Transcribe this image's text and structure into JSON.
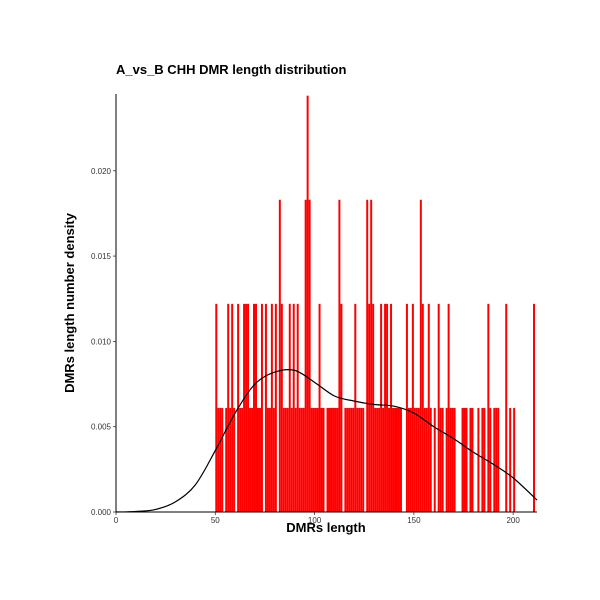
{
  "chart_data": {
    "type": "bar",
    "subtype": "histogram-with-density",
    "title": "A_vs_B  CHH  DMR  length  distribution",
    "xlabel": "DMRs  length",
    "ylabel": "DMRs  length  number  density",
    "xlim": [
      0,
      212
    ],
    "ylim": [
      0,
      0.0245
    ],
    "x_ticks": [
      0,
      50,
      100,
      150,
      200
    ],
    "x_tick_labels": [
      "0",
      "50",
      "100",
      "150",
      "200"
    ],
    "y_ticks": [
      0,
      0.005,
      0.01,
      0.015,
      0.02
    ],
    "y_tick_labels": [
      "0.000",
      "0.005",
      "0.010",
      "0.015",
      "0.020"
    ],
    "bar_color": "#ff0000",
    "line_color": "#000000",
    "grid": false,
    "bin_width": 1,
    "bars": [
      {
        "x": 50,
        "y": 0.0122
      },
      {
        "x": 51,
        "y": 0.0061
      },
      {
        "x": 52,
        "y": 0.0061
      },
      {
        "x": 53,
        "y": 0.0061
      },
      {
        "x": 55,
        "y": 0.0061
      },
      {
        "x": 56,
        "y": 0.0122
      },
      {
        "x": 57,
        "y": 0.0061
      },
      {
        "x": 58,
        "y": 0.0122
      },
      {
        "x": 59,
        "y": 0.0061
      },
      {
        "x": 61,
        "y": 0.0122
      },
      {
        "x": 62,
        "y": 0.0061
      },
      {
        "x": 63,
        "y": 0.0061
      },
      {
        "x": 64,
        "y": 0.0122
      },
      {
        "x": 65,
        "y": 0.0122
      },
      {
        "x": 66,
        "y": 0.0122
      },
      {
        "x": 67,
        "y": 0.0061
      },
      {
        "x": 68,
        "y": 0.0061
      },
      {
        "x": 69,
        "y": 0.0122
      },
      {
        "x": 70,
        "y": 0.0122
      },
      {
        "x": 71,
        "y": 0.0061
      },
      {
        "x": 72,
        "y": 0.0061
      },
      {
        "x": 73,
        "y": 0.0122
      },
      {
        "x": 75,
        "y": 0.0122
      },
      {
        "x": 76,
        "y": 0.0061
      },
      {
        "x": 77,
        "y": 0.0061
      },
      {
        "x": 78,
        "y": 0.0122
      },
      {
        "x": 79,
        "y": 0.0061
      },
      {
        "x": 80,
        "y": 0.0122
      },
      {
        "x": 82,
        "y": 0.0183
      },
      {
        "x": 83,
        "y": 0.0122
      },
      {
        "x": 84,
        "y": 0.0061
      },
      {
        "x": 85,
        "y": 0.0061
      },
      {
        "x": 86,
        "y": 0.0061
      },
      {
        "x": 87,
        "y": 0.0122
      },
      {
        "x": 88,
        "y": 0.0061
      },
      {
        "x": 89,
        "y": 0.0122
      },
      {
        "x": 90,
        "y": 0.0061
      },
      {
        "x": 91,
        "y": 0.0122
      },
      {
        "x": 92,
        "y": 0.0061
      },
      {
        "x": 93,
        "y": 0.0061
      },
      {
        "x": 94,
        "y": 0.0061
      },
      {
        "x": 95,
        "y": 0.0183
      },
      {
        "x": 96,
        "y": 0.0244
      },
      {
        "x": 97,
        "y": 0.0183
      },
      {
        "x": 98,
        "y": 0.0061
      },
      {
        "x": 99,
        "y": 0.0061
      },
      {
        "x": 100,
        "y": 0.0061
      },
      {
        "x": 101,
        "y": 0.0061
      },
      {
        "x": 102,
        "y": 0.0122
      },
      {
        "x": 103,
        "y": 0.0061
      },
      {
        "x": 104,
        "y": 0.0061
      },
      {
        "x": 106,
        "y": 0.0061
      },
      {
        "x": 107,
        "y": 0.0061
      },
      {
        "x": 108,
        "y": 0.0061
      },
      {
        "x": 109,
        "y": 0.0061
      },
      {
        "x": 110,
        "y": 0.0061
      },
      {
        "x": 111,
        "y": 0.0061
      },
      {
        "x": 112,
        "y": 0.0183
      },
      {
        "x": 113,
        "y": 0.0122
      },
      {
        "x": 115,
        "y": 0.0061
      },
      {
        "x": 116,
        "y": 0.0061
      },
      {
        "x": 117,
        "y": 0.0061
      },
      {
        "x": 118,
        "y": 0.0061
      },
      {
        "x": 119,
        "y": 0.0061
      },
      {
        "x": 120,
        "y": 0.0122
      },
      {
        "x": 121,
        "y": 0.0061
      },
      {
        "x": 122,
        "y": 0.0061
      },
      {
        "x": 123,
        "y": 0.0061
      },
      {
        "x": 124,
        "y": 0.0061
      },
      {
        "x": 126,
        "y": 0.0183
      },
      {
        "x": 127,
        "y": 0.0122
      },
      {
        "x": 128,
        "y": 0.0183
      },
      {
        "x": 129,
        "y": 0.0122
      },
      {
        "x": 130,
        "y": 0.0061
      },
      {
        "x": 131,
        "y": 0.0061
      },
      {
        "x": 132,
        "y": 0.0061
      },
      {
        "x": 133,
        "y": 0.0122
      },
      {
        "x": 134,
        "y": 0.0061
      },
      {
        "x": 135,
        "y": 0.0122
      },
      {
        "x": 136,
        "y": 0.0122
      },
      {
        "x": 137,
        "y": 0.0061
      },
      {
        "x": 138,
        "y": 0.0122
      },
      {
        "x": 139,
        "y": 0.0061
      },
      {
        "x": 140,
        "y": 0.0061
      },
      {
        "x": 141,
        "y": 0.0061
      },
      {
        "x": 142,
        "y": 0.0061
      },
      {
        "x": 143,
        "y": 0.0061
      },
      {
        "x": 146,
        "y": 0.0122
      },
      {
        "x": 147,
        "y": 0.0061
      },
      {
        "x": 148,
        "y": 0.0061
      },
      {
        "x": 149,
        "y": 0.0122
      },
      {
        "x": 150,
        "y": 0.0061
      },
      {
        "x": 151,
        "y": 0.0061
      },
      {
        "x": 152,
        "y": 0.0061
      },
      {
        "x": 153,
        "y": 0.0183
      },
      {
        "x": 154,
        "y": 0.0122
      },
      {
        "x": 155,
        "y": 0.0061
      },
      {
        "x": 156,
        "y": 0.0061
      },
      {
        "x": 157,
        "y": 0.0122
      },
      {
        "x": 158,
        "y": 0.0061
      },
      {
        "x": 160,
        "y": 0.0061
      },
      {
        "x": 162,
        "y": 0.0122
      },
      {
        "x": 163,
        "y": 0.0061
      },
      {
        "x": 164,
        "y": 0.0061
      },
      {
        "x": 166,
        "y": 0.0061
      },
      {
        "x": 167,
        "y": 0.0122
      },
      {
        "x": 168,
        "y": 0.0061
      },
      {
        "x": 169,
        "y": 0.0061
      },
      {
        "x": 170,
        "y": 0.0061
      },
      {
        "x": 174,
        "y": 0.0061
      },
      {
        "x": 175,
        "y": 0.0061
      },
      {
        "x": 176,
        "y": 0.0061
      },
      {
        "x": 178,
        "y": 0.0061
      },
      {
        "x": 179,
        "y": 0.0061
      },
      {
        "x": 182,
        "y": 0.0061
      },
      {
        "x": 184,
        "y": 0.0061
      },
      {
        "x": 185,
        "y": 0.0061
      },
      {
        "x": 187,
        "y": 0.0122
      },
      {
        "x": 188,
        "y": 0.0061
      },
      {
        "x": 190,
        "y": 0.0061
      },
      {
        "x": 191,
        "y": 0.0061
      },
      {
        "x": 192,
        "y": 0.0061
      },
      {
        "x": 196,
        "y": 0.0122
      },
      {
        "x": 198,
        "y": 0.0061
      },
      {
        "x": 200,
        "y": 0.0061
      },
      {
        "x": 210,
        "y": 0.0122
      }
    ],
    "density_curve": [
      {
        "x": 0,
        "y": 0.0
      },
      {
        "x": 10,
        "y": 3e-05
      },
      {
        "x": 20,
        "y": 0.00015
      },
      {
        "x": 30,
        "y": 0.0006
      },
      {
        "x": 40,
        "y": 0.0016
      },
      {
        "x": 50,
        "y": 0.0036
      },
      {
        "x": 60,
        "y": 0.0058
      },
      {
        "x": 70,
        "y": 0.0075
      },
      {
        "x": 80,
        "y": 0.0082
      },
      {
        "x": 90,
        "y": 0.0083
      },
      {
        "x": 100,
        "y": 0.0076
      },
      {
        "x": 110,
        "y": 0.0068
      },
      {
        "x": 120,
        "y": 0.0065
      },
      {
        "x": 130,
        "y": 0.0063
      },
      {
        "x": 140,
        "y": 0.0062
      },
      {
        "x": 150,
        "y": 0.0058
      },
      {
        "x": 160,
        "y": 0.005
      },
      {
        "x": 170,
        "y": 0.0043
      },
      {
        "x": 180,
        "y": 0.0035
      },
      {
        "x": 190,
        "y": 0.0028
      },
      {
        "x": 200,
        "y": 0.002
      },
      {
        "x": 212,
        "y": 0.0007
      }
    ]
  }
}
